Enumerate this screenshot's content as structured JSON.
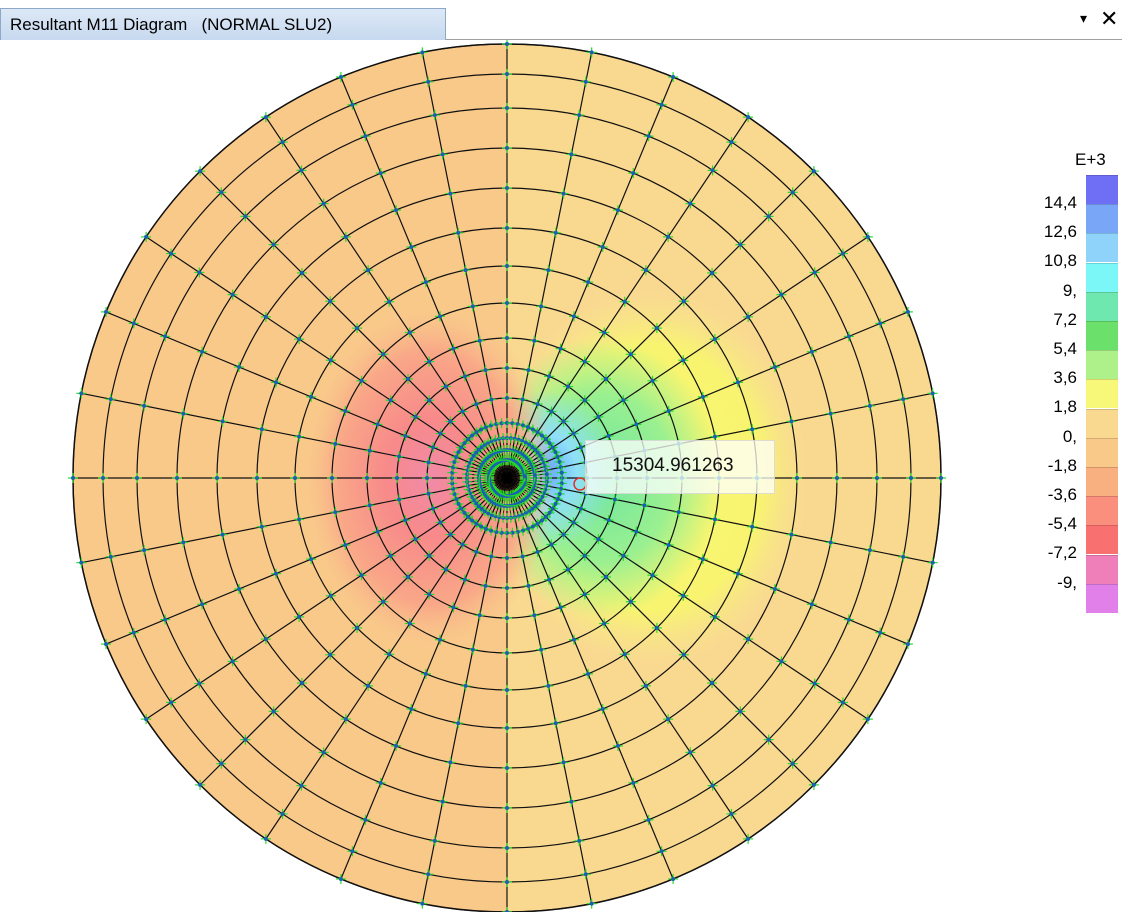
{
  "window": {
    "tab_title": "Resultant M11 Diagram   (NORMAL SLU2)",
    "pin_icon": "dropdown-arrow-icon",
    "pin_glyph": "▾",
    "close_icon": "close-icon",
    "close_glyph": "✕"
  },
  "plot": {
    "mesh_rings": 12,
    "mesh_radial_divisions": 32,
    "probe_value": "15304.961263"
  },
  "legend": {
    "exponent": "E+3",
    "labels": [
      "14,4",
      "12,6",
      "10,8",
      "9,",
      "7,2",
      "5,4",
      "3,6",
      "1,8",
      "0,",
      "-1,8",
      "-3,6",
      "-5,4",
      "-7,2",
      "-9,"
    ],
    "colors": [
      "#6f6ff5",
      "#7aa6f7",
      "#8fd3fb",
      "#7cf7f7",
      "#6fe8b0",
      "#6be06b",
      "#aef08a",
      "#f7f77a",
      "#f9d890",
      "#f9c98a",
      "#f9b080",
      "#f98f7c",
      "#f87070",
      "#ee7fb8",
      "#e080e8"
    ]
  }
}
